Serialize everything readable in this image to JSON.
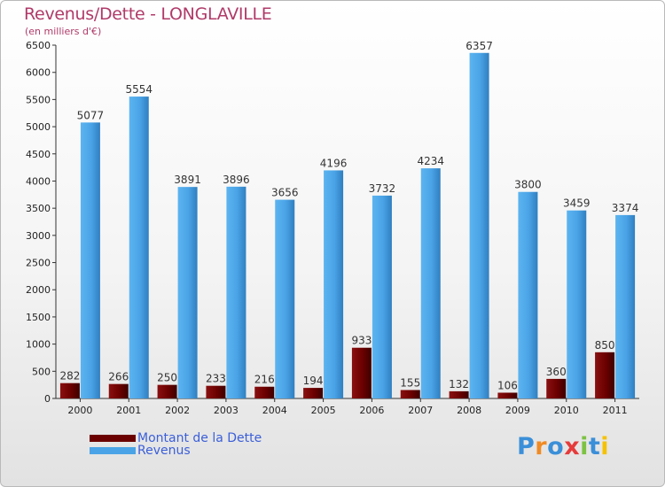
{
  "title": "Revenus/Dette - LONGLAVILLE",
  "subtitle": "(en milliers d'€)",
  "logo": {
    "text": "Proxiti",
    "letter_colors": [
      "#3a8fd8",
      "#f08a24",
      "#3a8fd8",
      "#e63b3b",
      "#7cc243",
      "#3a8fd8",
      "#f5c200"
    ]
  },
  "legend": [
    {
      "label": "Montant de la Dette",
      "color": "#6b0000"
    },
    {
      "label": "Revenus",
      "color": "#4aa3e6"
    }
  ],
  "chart_data": {
    "type": "bar",
    "categories": [
      "2000",
      "2001",
      "2002",
      "2003",
      "2004",
      "2005",
      "2006",
      "2007",
      "2008",
      "2009",
      "2010",
      "2011"
    ],
    "series": [
      {
        "name": "Montant de la Dette",
        "color": "#6b0000",
        "values": [
          282,
          266,
          250,
          233,
          216,
          194,
          933,
          155,
          132,
          106,
          360,
          850
        ]
      },
      {
        "name": "Revenus",
        "color": "#4aa3e6",
        "values": [
          5077,
          5554,
          3891,
          3896,
          3656,
          4196,
          3732,
          4234,
          6357,
          3800,
          3459,
          3374
        ]
      }
    ],
    "title": "Revenus/Dette - LONGLAVILLE",
    "ylim": [
      0,
      6500
    ],
    "yticks": [
      0,
      500,
      1000,
      1500,
      2000,
      2500,
      3000,
      3500,
      4000,
      4500,
      5000,
      5500,
      6000,
      6500
    ],
    "grid": false,
    "legend_position": "bottom-left",
    "data_labels": true
  }
}
